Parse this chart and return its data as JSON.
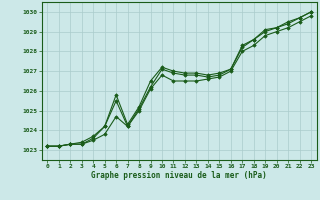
{
  "xlabel": "Graphe pression niveau de la mer (hPa)",
  "xlim": [
    -0.5,
    23.5
  ],
  "ylim": [
    1022.5,
    1030.5
  ],
  "yticks": [
    1023,
    1024,
    1025,
    1026,
    1027,
    1028,
    1029,
    1030
  ],
  "xticks": [
    0,
    1,
    2,
    3,
    4,
    5,
    6,
    7,
    8,
    9,
    10,
    11,
    12,
    13,
    14,
    15,
    16,
    17,
    18,
    19,
    20,
    21,
    22,
    23
  ],
  "bg_color": "#cce8e8",
  "grid_color": "#aacccc",
  "line_color": "#1a5c1a",
  "line1": [
    1023.2,
    1023.2,
    1023.3,
    1023.3,
    1023.6,
    1024.2,
    1025.5,
    1024.2,
    1025.1,
    1026.2,
    1027.1,
    1026.9,
    1026.8,
    1026.8,
    1026.7,
    1026.8,
    1027.1,
    1028.2,
    1028.6,
    1029.0,
    1029.2,
    1029.4,
    1029.7,
    1030.0
  ],
  "line2": [
    1023.2,
    1023.2,
    1023.3,
    1023.4,
    1023.7,
    1024.2,
    1025.8,
    1024.3,
    1025.2,
    1026.5,
    1027.2,
    1027.0,
    1026.9,
    1026.9,
    1026.8,
    1026.9,
    1027.1,
    1028.3,
    1028.6,
    1029.1,
    1029.2,
    1029.5,
    1029.7,
    1030.0
  ],
  "line3": [
    1023.2,
    1023.2,
    1023.3,
    1023.3,
    1023.5,
    1023.8,
    1024.7,
    1024.2,
    1025.0,
    1026.1,
    1026.8,
    1026.5,
    1026.5,
    1026.5,
    1026.6,
    1026.7,
    1027.0,
    1028.0,
    1028.3,
    1028.8,
    1029.0,
    1029.2,
    1029.5,
    1029.8
  ]
}
